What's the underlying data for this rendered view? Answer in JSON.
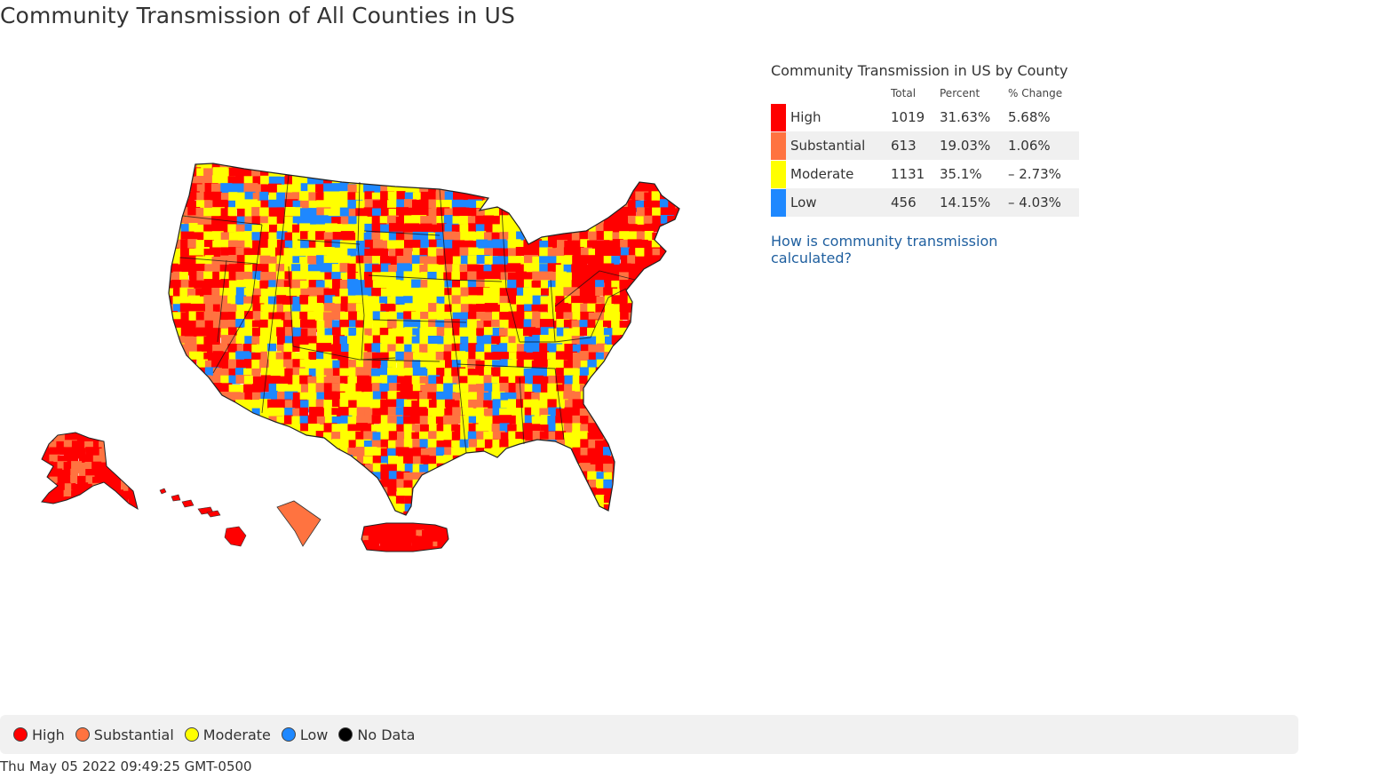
{
  "page": {
    "title": "Community Transmission of All Counties in US"
  },
  "summary": {
    "title": "Community Transmission in US by County",
    "headers": {
      "total": "Total",
      "percent": "Percent",
      "change": "% Change"
    },
    "rows": [
      {
        "level": "High",
        "total": "1019",
        "percent": "31.63%",
        "change": "5.68%",
        "color": "#ff0000"
      },
      {
        "level": "Substantial",
        "total": "613",
        "percent": "19.03%",
        "change": "1.06%",
        "color": "#ff7340"
      },
      {
        "level": "Moderate",
        "total": "1131",
        "percent": "35.1%",
        "change": "– 2.73%",
        "color": "#ffff00"
      },
      {
        "level": "Low",
        "total": "456",
        "percent": "14.15%",
        "change": "– 4.03%",
        "color": "#1e88ff"
      }
    ],
    "link_text": "How is community transmission calculated?"
  },
  "legend": {
    "items": [
      {
        "label": "High",
        "color": "#ff0000"
      },
      {
        "label": "Substantial",
        "color": "#ff7340"
      },
      {
        "label": "Moderate",
        "color": "#ffff00"
      },
      {
        "label": "Low",
        "color": "#1e88ff"
      },
      {
        "label": "No Data",
        "color": "#000000"
      }
    ]
  },
  "timestamp": "Thu May 05 2022 09:49:25 GMT-0500"
}
